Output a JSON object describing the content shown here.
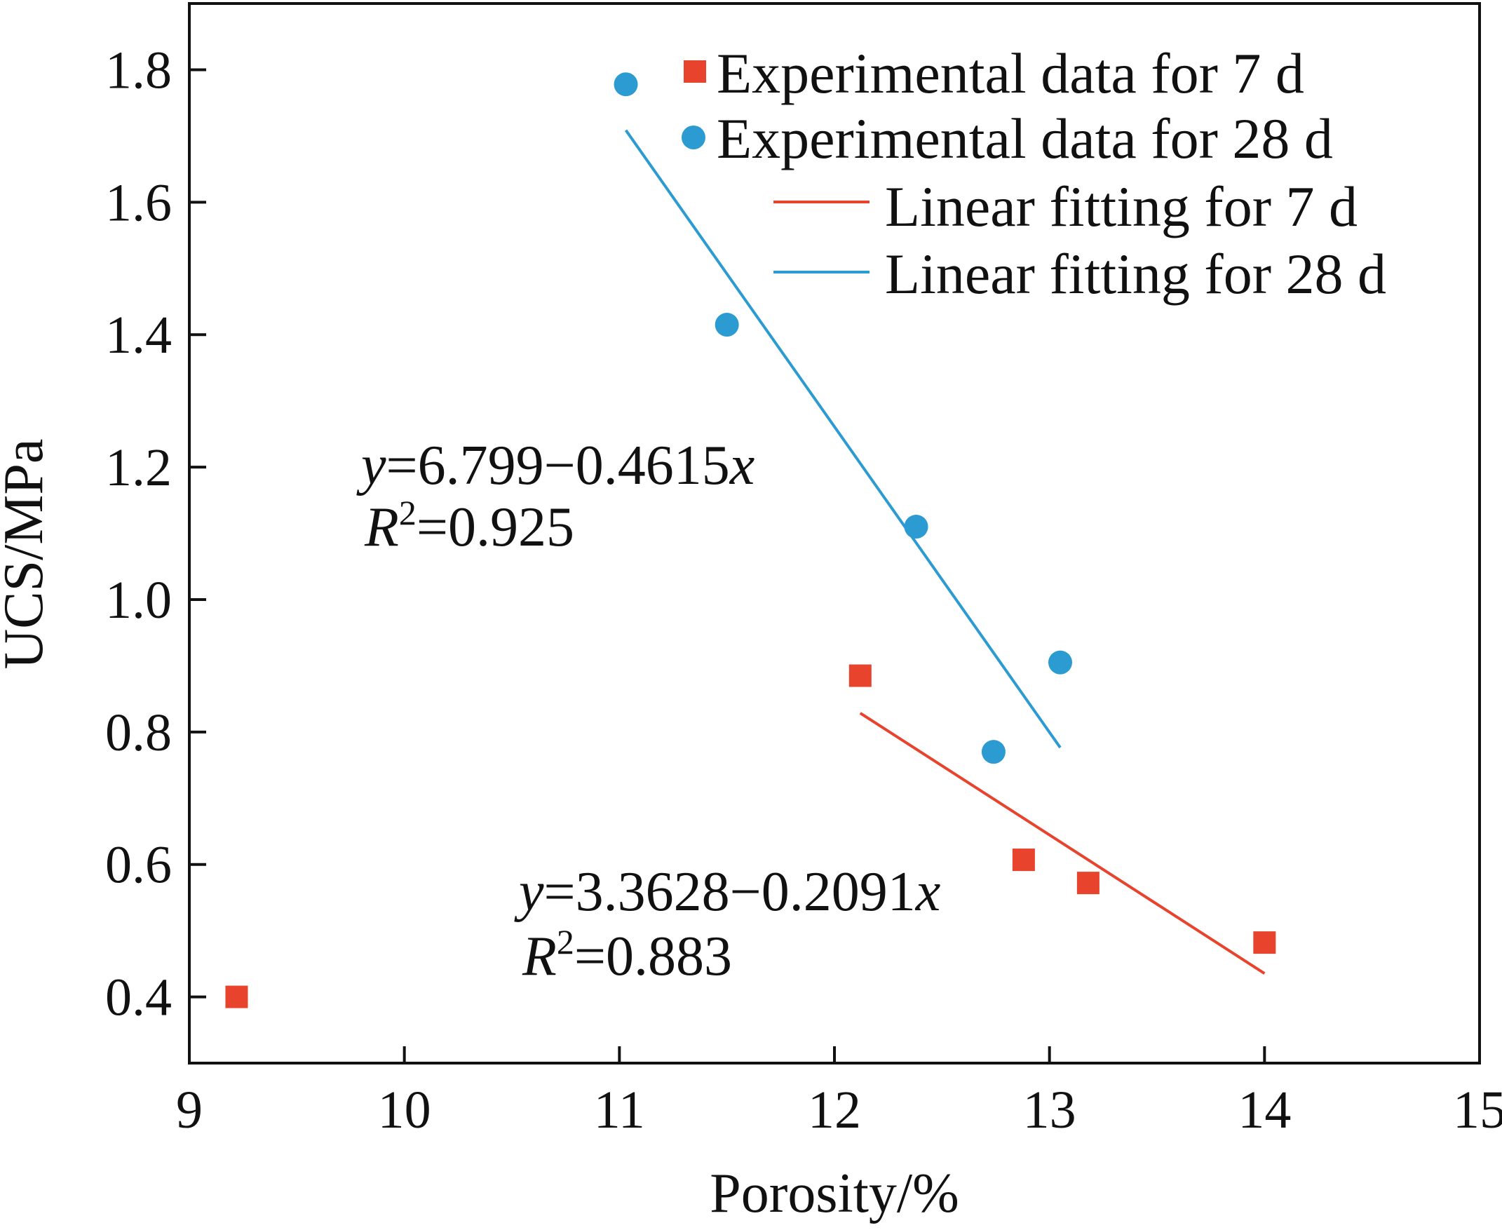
{
  "chart_data": {
    "type": "scatter",
    "title": "",
    "xlabel": "Porosity/%",
    "ylabel": "UCS/MPa",
    "xlim": [
      9,
      15
    ],
    "ylim": [
      0.3,
      1.9
    ],
    "xticks": [
      9,
      10,
      11,
      12,
      13,
      14,
      15
    ],
    "xtick_labels": [
      "9",
      "10",
      "11",
      "12",
      "13",
      "14",
      "15"
    ],
    "yticks": [
      0.4,
      0.6,
      0.8,
      1.0,
      1.2,
      1.4,
      1.6,
      1.8
    ],
    "ytick_labels": [
      "0.4",
      "0.6",
      "0.8",
      "1.0",
      "1.2",
      "1.4",
      "1.6",
      "1.8"
    ],
    "grid": false,
    "legend_position": "top-right",
    "series": [
      {
        "name": "Experimental data for 7 d",
        "kind": "scatter",
        "marker": "square",
        "color": "#E8432C",
        "points": [
          [
            9.22,
            0.4
          ],
          [
            12.12,
            0.885
          ],
          [
            12.88,
            0.607
          ],
          [
            13.18,
            0.572
          ],
          [
            14.0,
            0.482
          ]
        ]
      },
      {
        "name": "Experimental data for 28 d",
        "kind": "scatter",
        "marker": "circle",
        "color": "#2B9BD1",
        "points": [
          [
            11.03,
            1.778
          ],
          [
            11.5,
            1.415
          ],
          [
            12.38,
            1.11
          ],
          [
            12.74,
            0.77
          ],
          [
            13.05,
            0.905
          ]
        ]
      },
      {
        "name": "Linear fitting for 7 d",
        "kind": "line",
        "color": "#E8432C",
        "x_range": [
          12.12,
          14.0
        ],
        "intercept": 3.3628,
        "slope": -0.2091
      },
      {
        "name": "Linear fitting for 28 d",
        "kind": "line",
        "color": "#2B9BD1",
        "x_range": [
          11.03,
          13.05
        ],
        "intercept": 6.799,
        "slope": -0.4615
      }
    ],
    "annotations": [
      {
        "id": "fit28",
        "y_var": "y",
        "equation": "=6.799−0.4615",
        "x_var": "x",
        "r_var": "R",
        "r_sup": "2",
        "r_value": "=0.925"
      },
      {
        "id": "fit7",
        "y_var": "y",
        "equation": "=3.3628−0.2091",
        "x_var": "x",
        "r_var": "R",
        "r_sup": "2",
        "r_value": "=0.883"
      }
    ]
  }
}
